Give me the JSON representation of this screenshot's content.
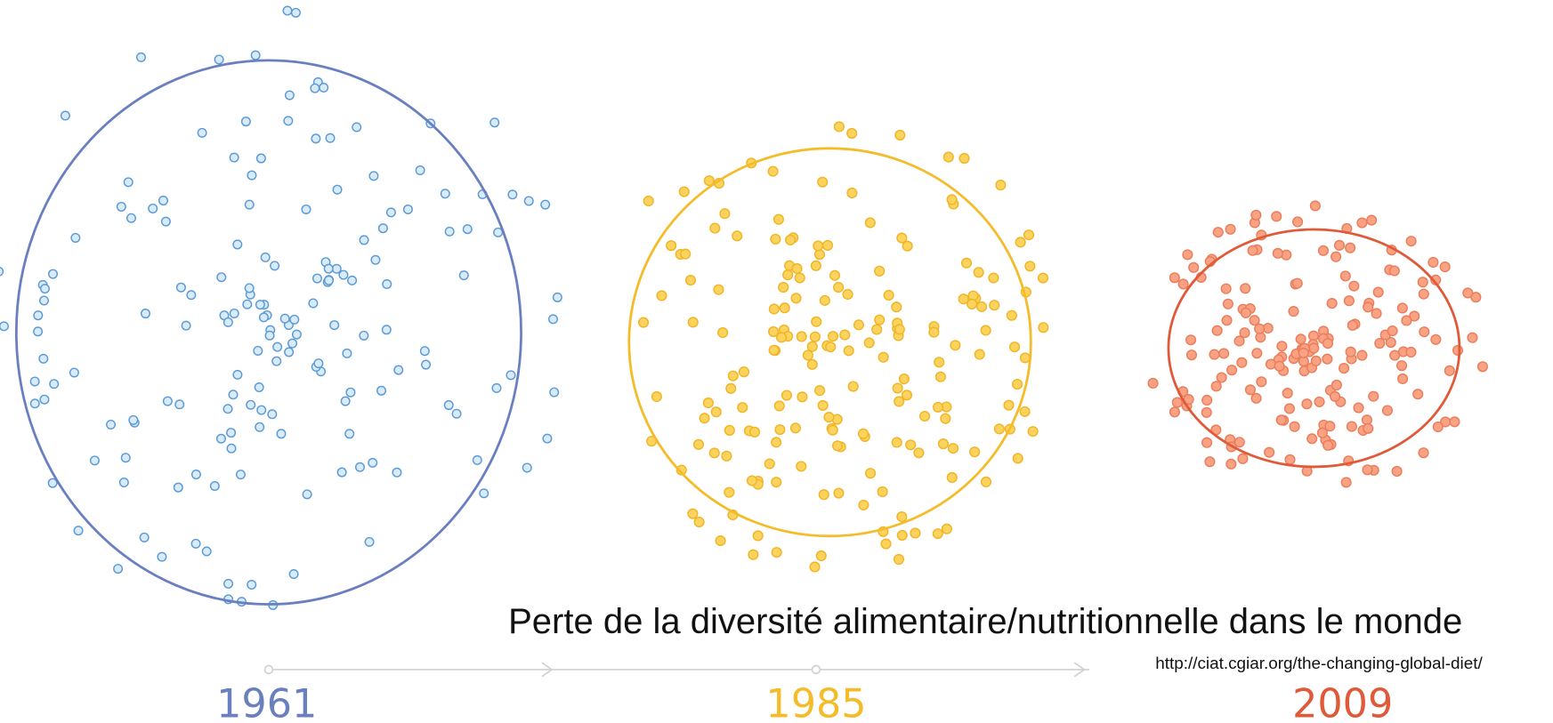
{
  "title": "Perte de la diversité alimentaire/nutritionnelle dans le monde",
  "source": "http://ciat.cgiar.org/the-changing-global-diet/",
  "timeline": [
    {
      "label": "1961"
    },
    {
      "label": "1985"
    },
    {
      "label": "2009"
    }
  ]
}
